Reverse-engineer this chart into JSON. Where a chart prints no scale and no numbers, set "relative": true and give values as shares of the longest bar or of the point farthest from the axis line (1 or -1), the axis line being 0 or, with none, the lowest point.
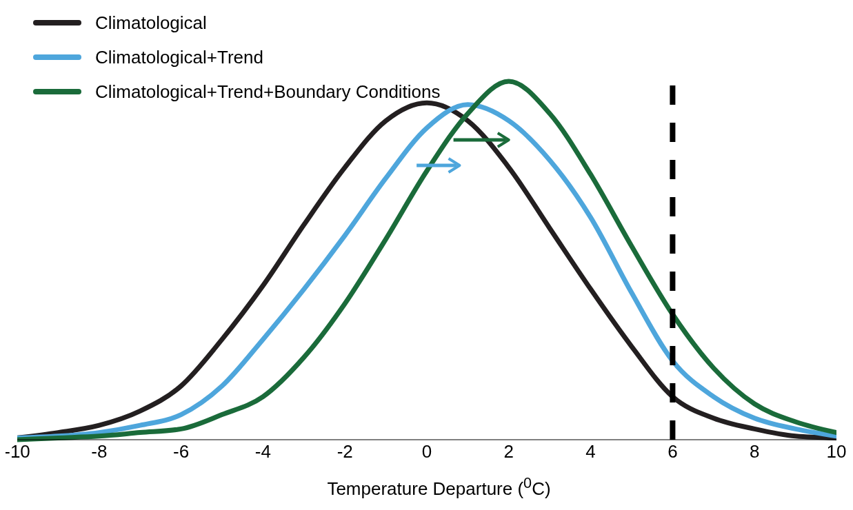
{
  "chart_data": {
    "type": "line",
    "xlabel": "Temperature Departure ($^{0}$C)",
    "relative": true,
    "legend": "top left",
    "marker": "none",
    "line_style": "solid",
    "x": [
      -10,
      -9,
      -8,
      -7,
      -6,
      -5,
      -4,
      -3,
      -2,
      -1,
      0,
      1,
      2,
      3,
      4,
      5,
      6,
      7,
      8,
      9,
      10
    ],
    "xlim": [
      -10,
      10
    ],
    "xticks": [
      -10,
      -8,
      -6,
      -4,
      -2,
      0,
      2,
      4,
      6,
      8,
      10
    ],
    "series": [
      {
        "name": "Climatological",
        "color": "#231f20",
        "values": [
          0.005,
          0.02,
          0.04,
          0.08,
          0.15,
          0.28,
          0.43,
          0.6,
          0.76,
          0.89,
          0.94,
          0.89,
          0.76,
          0.59,
          0.42,
          0.26,
          0.12,
          0.06,
          0.03,
          0.01,
          0.005
        ]
      },
      {
        "name": "Climatological+Trend",
        "color": "#4ea6dc",
        "values": [
          0.005,
          0.01,
          0.02,
          0.04,
          0.07,
          0.15,
          0.28,
          0.42,
          0.57,
          0.73,
          0.87,
          0.935,
          0.89,
          0.78,
          0.62,
          0.41,
          0.22,
          0.12,
          0.06,
          0.03,
          0.01
        ]
      },
      {
        "name": "Climatological+Trend+Boundary Conditions",
        "color": "#1a6b3a",
        "values": [
          0,
          0.005,
          0.01,
          0.02,
          0.03,
          0.07,
          0.12,
          0.23,
          0.38,
          0.56,
          0.75,
          0.91,
          1,
          0.91,
          0.74,
          0.54,
          0.35,
          0.2,
          0.1,
          0.05,
          0.02
        ]
      }
    ],
    "ref_lines": [
      {
        "axis": "x",
        "value": 6,
        "color": "#000000",
        "line_style": "dashed"
      }
    ]
  }
}
